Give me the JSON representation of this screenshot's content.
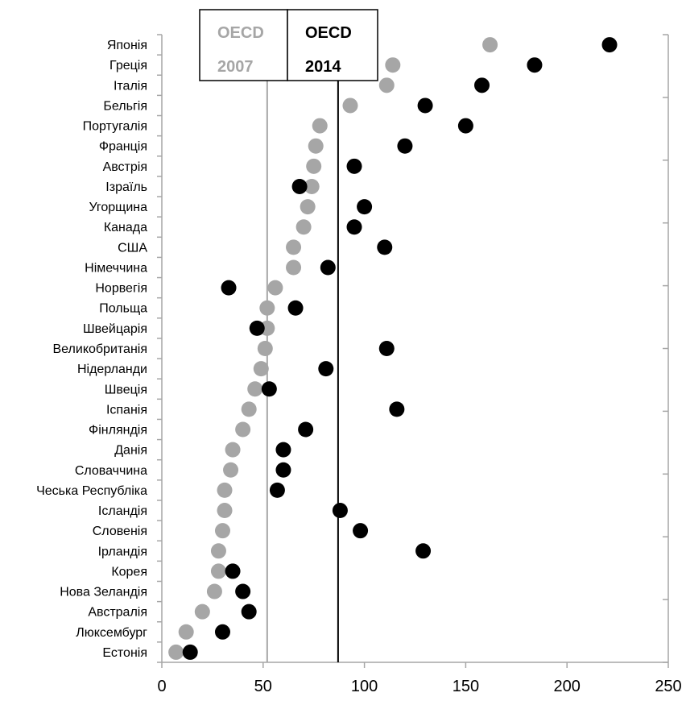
{
  "chart_data": {
    "type": "scatter",
    "orientation": "horizontal-dot-plot",
    "categories": [
      "Японія",
      "Греція",
      "Італія",
      "Бельгія",
      "Португалія",
      "Франція",
      "Австрія",
      "Ізраїль",
      "Угорщина",
      "Канада",
      "США",
      "Німеччина",
      "Норвегія",
      "Польща",
      "Швейцарія",
      "Великобританія",
      "Нідерланди",
      "Швеція",
      "Іспанія",
      "Фінляндія",
      "Данія",
      "Словаччина",
      "Чеська Республіка",
      "Ісландія",
      "Словенія",
      "Ірландія",
      "Корея",
      "Нова Зеландія",
      "Австралія",
      "Люксембург",
      "Естонія"
    ],
    "series": [
      {
        "name": "OECD 2007",
        "color": "#a6a6a6",
        "values": [
          162,
          114,
          111,
          93,
          78,
          76,
          75,
          74,
          72,
          70,
          65,
          65,
          56,
          52,
          52,
          51,
          49,
          46,
          43,
          40,
          35,
          34,
          31,
          31,
          30,
          28,
          28,
          26,
          20,
          12,
          7
        ]
      },
      {
        "name": "OECD 2014",
        "color": "#000000",
        "values": [
          221,
          184,
          158,
          130,
          150,
          120,
          95,
          68,
          100,
          95,
          110,
          82,
          33,
          66,
          47,
          111,
          81,
          53,
          116,
          71,
          60,
          60,
          57,
          88,
          98,
          129,
          35,
          40,
          43,
          30,
          14
        ]
      }
    ],
    "reference_lines": [
      {
        "name": "OECD 2007",
        "value": 52,
        "color": "#a6a6a6"
      },
      {
        "name": "OECD 2014",
        "value": 87,
        "color": "#000000"
      }
    ],
    "xlim": [
      0,
      250
    ],
    "xticks": [
      "0",
      "50",
      "100",
      "150",
      "200",
      "250"
    ],
    "legend": [
      {
        "line1": "OECD",
        "line2": "2007",
        "color": "#a6a6a6"
      },
      {
        "line1": "OECD",
        "line2": "2014",
        "color": "#000000"
      }
    ],
    "legend_position": "top-center",
    "grid": false
  }
}
